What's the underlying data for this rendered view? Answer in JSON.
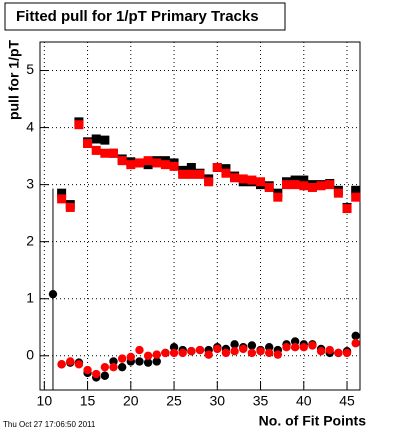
{
  "chart_data": {
    "type": "scatter",
    "title": "Fitted pull for 1/pT Primary Tracks",
    "x_label": "No. of Fit Points",
    "y_label": "pull for 1/pT",
    "timestamp": "Thu Oct 27 17:06:50 2011",
    "x": [
      11,
      12,
      13,
      14,
      15,
      16,
      17,
      18,
      19,
      20,
      21,
      22,
      23,
      24,
      25,
      26,
      27,
      28,
      29,
      30,
      31,
      32,
      33,
      34,
      35,
      36,
      37,
      38,
      39,
      40,
      41,
      42,
      43,
      44,
      45,
      46
    ],
    "series": [
      {
        "color": "#000000",
        "marker": "square",
        "values": [
          null,
          2.85,
          2.65,
          4.1,
          3.75,
          3.8,
          3.78,
          3.55,
          3.45,
          3.4,
          3.38,
          3.35,
          3.42,
          3.42,
          3.38,
          3.25,
          3.3,
          3.2,
          3.1,
          3.3,
          3.28,
          3.15,
          3.05,
          3.05,
          3.0,
          2.98,
          2.85,
          3.05,
          3.08,
          3.08,
          3.0,
          3.0,
          3.02,
          2.9,
          2.6,
          2.9
        ]
      },
      {
        "color": "#ff0000",
        "marker": "square",
        "values": [
          null,
          2.75,
          2.6,
          4.05,
          3.72,
          3.6,
          3.55,
          3.55,
          3.42,
          3.35,
          3.38,
          3.42,
          3.38,
          3.35,
          3.32,
          3.18,
          3.18,
          3.18,
          3.05,
          3.3,
          3.2,
          3.12,
          3.1,
          3.08,
          3.05,
          2.95,
          2.78,
          3.0,
          3.0,
          2.98,
          2.95,
          2.98,
          3.0,
          2.85,
          2.58,
          2.78
        ]
      },
      {
        "color": "#000000",
        "marker": "circle",
        "values": [
          1.08,
          -0.15,
          -0.12,
          -0.12,
          -0.3,
          -0.38,
          -0.35,
          -0.1,
          -0.2,
          -0.1,
          -0.1,
          -0.12,
          -0.1,
          0.05,
          0.15,
          0.1,
          0.08,
          0.1,
          0.1,
          0.15,
          0.12,
          0.2,
          0.15,
          0.18,
          0.1,
          0.15,
          0.1,
          0.2,
          0.25,
          0.2,
          0.2,
          0.12,
          0.05,
          0.05,
          0.08,
          0.35
        ],
        "errors": [
          1.85,
          null,
          null,
          null,
          null,
          null,
          null,
          null,
          null,
          null,
          null,
          null,
          null,
          null,
          null,
          null,
          null,
          null,
          null,
          null,
          null,
          null,
          null,
          null,
          null,
          null,
          null,
          null,
          null,
          null,
          null,
          null,
          null,
          null,
          null,
          null
        ]
      },
      {
        "color": "#ff0000",
        "marker": "circle",
        "values": [
          null,
          -0.15,
          -0.1,
          -0.15,
          -0.25,
          -0.32,
          -0.2,
          -0.2,
          -0.05,
          -0.02,
          0.1,
          0.0,
          0.02,
          0.05,
          0.05,
          0.05,
          0.08,
          0.1,
          0.02,
          0.12,
          0.05,
          0.08,
          0.12,
          0.05,
          0.08,
          0.05,
          0.02,
          0.15,
          0.15,
          0.15,
          0.18,
          0.08,
          0.1,
          0.05,
          0.05,
          0.22
        ]
      }
    ],
    "xlim": [
      9.5,
      46.5
    ],
    "ylim": [
      -0.6,
      5.5
    ],
    "xticks": [
      10,
      15,
      20,
      25,
      30,
      35,
      40,
      45
    ],
    "yticks": [
      0,
      1,
      2,
      3,
      4,
      5
    ],
    "grid": true
  }
}
